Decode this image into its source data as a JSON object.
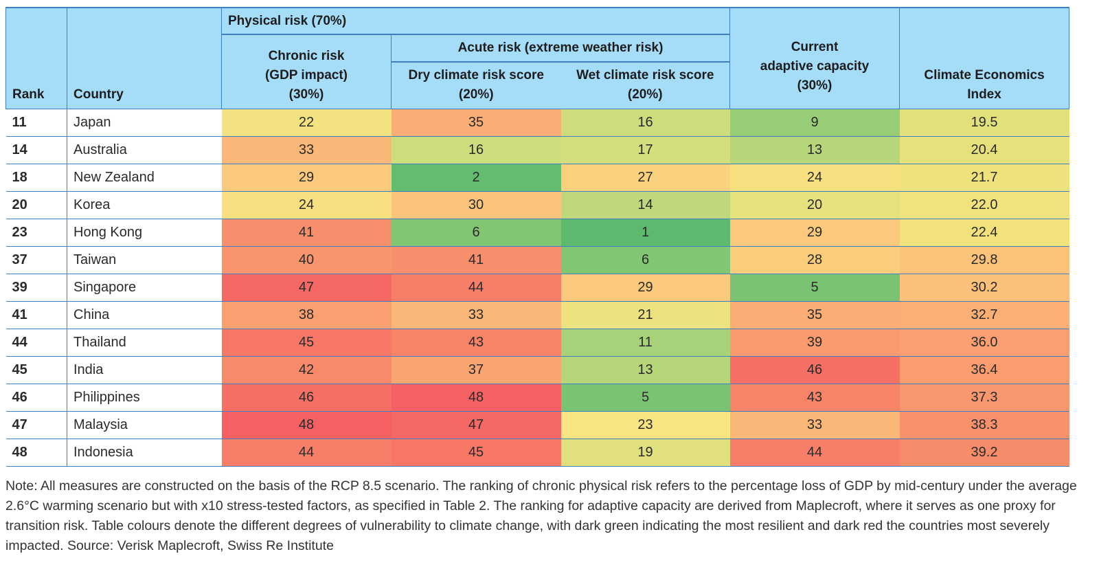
{
  "header": {
    "rank": "Rank",
    "country": "Country",
    "physical_risk": "Physical risk (70%)",
    "chronic_risk": [
      "Chronic risk",
      "(GDP impact)",
      "(30%)"
    ],
    "acute_risk": "Acute risk (extreme weather risk)",
    "dry_risk": [
      "Dry climate risk score",
      "(20%)"
    ],
    "wet_risk": [
      "Wet climate risk score",
      "(20%)"
    ],
    "adaptive_capacity": [
      "Current",
      "adaptive capacity",
      "(30%)"
    ],
    "index": [
      "Climate Economics",
      "Index"
    ]
  },
  "colors": {
    "header_bg": "#a5dcf7",
    "border": "#3d7fc4",
    "most_resilient": "#5cb96e",
    "most_impacted": "#f65f63"
  },
  "rows": [
    {
      "rank": "11",
      "country": "Japan",
      "chronic": "22",
      "dry": "35",
      "wet": "16",
      "adaptive": "9",
      "index": "19.5"
    },
    {
      "rank": "14",
      "country": "Australia",
      "chronic": "33",
      "dry": "16",
      "wet": "17",
      "adaptive": "13",
      "index": "20.4"
    },
    {
      "rank": "18",
      "country": "New Zealand",
      "chronic": "29",
      "dry": "2",
      "wet": "27",
      "adaptive": "24",
      "index": "21.7"
    },
    {
      "rank": "20",
      "country": "Korea",
      "chronic": "24",
      "dry": "30",
      "wet": "14",
      "adaptive": "20",
      "index": "22.0"
    },
    {
      "rank": "23",
      "country": "Hong Kong",
      "chronic": "41",
      "dry": "6",
      "wet": "1",
      "adaptive": "29",
      "index": "22.4"
    },
    {
      "rank": "37",
      "country": "Taiwan",
      "chronic": "40",
      "dry": "41",
      "wet": "6",
      "adaptive": "28",
      "index": "29.8"
    },
    {
      "rank": "39",
      "country": "Singapore",
      "chronic": "47",
      "dry": "44",
      "wet": "29",
      "adaptive": "5",
      "index": "30.2"
    },
    {
      "rank": "41",
      "country": "China",
      "chronic": "38",
      "dry": "33",
      "wet": "21",
      "adaptive": "35",
      "index": "32.7"
    },
    {
      "rank": "44",
      "country": "Thailand",
      "chronic": "45",
      "dry": "43",
      "wet": "11",
      "adaptive": "39",
      "index": "36.0"
    },
    {
      "rank": "45",
      "country": "India",
      "chronic": "42",
      "dry": "37",
      "wet": "13",
      "adaptive": "46",
      "index": "36.4"
    },
    {
      "rank": "46",
      "country": "Philippines",
      "chronic": "46",
      "dry": "48",
      "wet": "5",
      "adaptive": "43",
      "index": "37.3"
    },
    {
      "rank": "47",
      "country": "Malaysia",
      "chronic": "48",
      "dry": "47",
      "wet": "23",
      "adaptive": "33",
      "index": "38.3"
    },
    {
      "rank": "48",
      "country": "Indonesia",
      "chronic": "44",
      "dry": "45",
      "wet": "19",
      "adaptive": "44",
      "index": "39.2"
    }
  ],
  "note": "Note: All measures are constructed on the basis of the RCP 8.5 scenario. The ranking of chronic physical risk refers to the percentage loss of GDP by mid-century under the average 2.6°C warming scenario but with x10 stress-tested factors, as specified in Table 2. The ranking for adaptive capacity are derived from Maplecroft, where it serves as one proxy for transition risk. Table colours denote the different degrees of vulnerability to climate change, with dark green indicating the most resilient and dark red the countries most severely impacted. Source: Verisk Maplecroft, Swiss Re Institute"
}
